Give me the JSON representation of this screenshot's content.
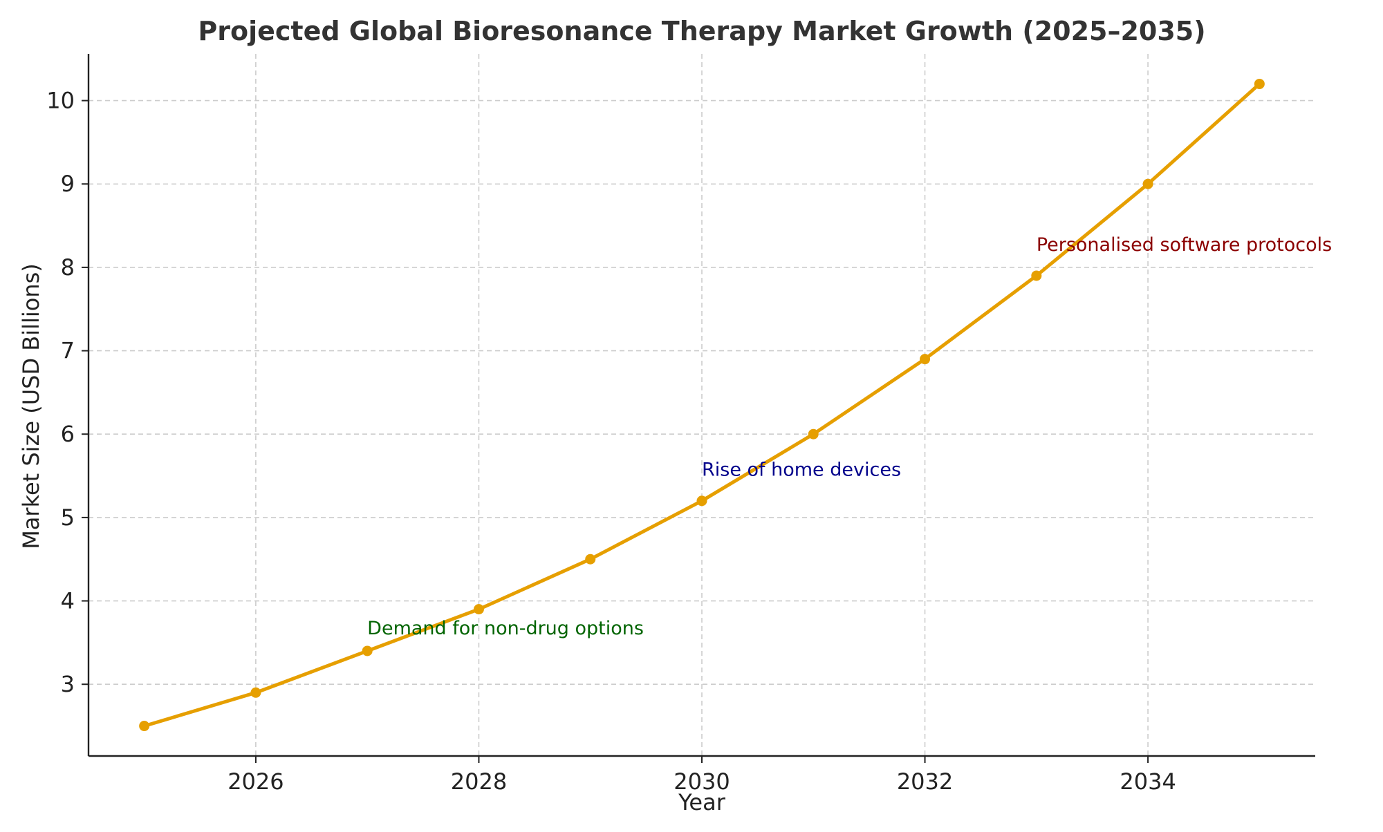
{
  "chart_data": {
    "type": "line",
    "title": "Projected Global Bioresonance Therapy Market Growth (2025–2035)",
    "xlabel": "Year",
    "ylabel": "Market Size (USD Billions)",
    "x": [
      2025,
      2026,
      2027,
      2028,
      2029,
      2030,
      2031,
      2032,
      2033,
      2034,
      2035
    ],
    "series": [
      {
        "values": [
          2.5,
          2.9,
          3.4,
          3.9,
          4.5,
          5.2,
          6.0,
          6.9,
          7.9,
          9.0,
          10.2
        ],
        "color": "#e69f00",
        "marker": "circle"
      }
    ],
    "xlim": [
      2024.5,
      2035.5
    ],
    "ylim": [
      2.14,
      10.56
    ],
    "xticks": [
      2026,
      2028,
      2030,
      2032,
      2034
    ],
    "yticks": [
      3,
      4,
      5,
      6,
      7,
      8,
      9,
      10
    ],
    "grid": true,
    "grid_style": "dashed",
    "annotations": [
      {
        "text": "Demand for non-drug options",
        "x": 2027,
        "y": 3.6,
        "color": "#006400"
      },
      {
        "text": "Rise of home devices",
        "x": 2030,
        "y": 5.5,
        "color": "#00008b"
      },
      {
        "text": "Personalised software protocols",
        "x": 2033,
        "y": 8.2,
        "color": "#8b0000"
      }
    ]
  }
}
